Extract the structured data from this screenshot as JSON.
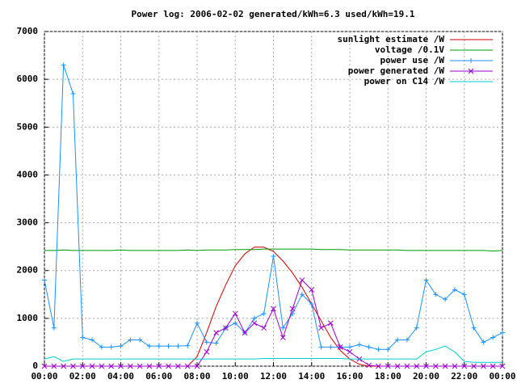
{
  "chart_data": {
    "type": "line",
    "title": "Power log: 2006-02-02 generated/kWh=6.3 used/kWh=19.1",
    "x": [
      0,
      0.5,
      1,
      1.5,
      2,
      2.5,
      3,
      3.5,
      4,
      4.5,
      5,
      5.5,
      6,
      6.5,
      7,
      7.5,
      8,
      8.5,
      9,
      9.5,
      10,
      10.5,
      11,
      11.5,
      12,
      12.5,
      13,
      13.5,
      14,
      14.5,
      15,
      15.5,
      16,
      16.5,
      17,
      17.5,
      18,
      18.5,
      19,
      19.5,
      20,
      20.5,
      21,
      21.5,
      22,
      22.5,
      23,
      23.5,
      24
    ],
    "xlim": [
      0,
      24
    ],
    "xticks": [
      {
        "value": 0,
        "label": "00:00"
      },
      {
        "value": 2,
        "label": "02:00"
      },
      {
        "value": 4,
        "label": "04:00"
      },
      {
        "value": 6,
        "label": "06:00"
      },
      {
        "value": 8,
        "label": "08:00"
      },
      {
        "value": 10,
        "label": "10:00"
      },
      {
        "value": 12,
        "label": "12:00"
      },
      {
        "value": 14,
        "label": "14:00"
      },
      {
        "value": 16,
        "label": "16:00"
      },
      {
        "value": 18,
        "label": "18:00"
      },
      {
        "value": 20,
        "label": "20:00"
      },
      {
        "value": 22,
        "label": "22:00"
      },
      {
        "value": 24,
        "label": "00:00"
      }
    ],
    "ylim": [
      0,
      7000
    ],
    "yticks": [
      0,
      1000,
      2000,
      3000,
      4000,
      5000,
      6000,
      7000
    ],
    "grid": true,
    "legend": "top-right",
    "series": [
      {
        "name": "sunlight estimate /W",
        "color": "#cc0000",
        "marker": "none",
        "values": [
          0,
          0,
          0,
          0,
          0,
          0,
          0,
          0,
          0,
          0,
          0,
          0,
          0,
          0,
          0,
          0,
          200,
          700,
          1250,
          1700,
          2100,
          2350,
          2490,
          2490,
          2400,
          2200,
          1950,
          1650,
          1300,
          950,
          600,
          330,
          150,
          40,
          0,
          0,
          0,
          0,
          0,
          0,
          0,
          0,
          0,
          0,
          0,
          0,
          0,
          0,
          0
        ]
      },
      {
        "name": "voltage /0.1V",
        "color": "#009900",
        "marker": "none",
        "values": [
          2420,
          2420,
          2430,
          2420,
          2420,
          2420,
          2420,
          2420,
          2430,
          2420,
          2420,
          2420,
          2420,
          2420,
          2420,
          2430,
          2420,
          2430,
          2430,
          2430,
          2440,
          2440,
          2440,
          2450,
          2450,
          2450,
          2450,
          2450,
          2450,
          2440,
          2440,
          2440,
          2430,
          2430,
          2430,
          2430,
          2430,
          2430,
          2420,
          2420,
          2420,
          2420,
          2420,
          2420,
          2420,
          2420,
          2420,
          2410,
          2420
        ]
      },
      {
        "name": "power use /W",
        "color": "#1e90ff",
        "marker": "plus",
        "values": [
          1800,
          800,
          6300,
          5700,
          600,
          550,
          400,
          400,
          420,
          550,
          550,
          420,
          420,
          420,
          420,
          430,
          900,
          500,
          480,
          800,
          900,
          700,
          1000,
          1100,
          2300,
          800,
          1100,
          1500,
          1300,
          400,
          400,
          400,
          400,
          450,
          400,
          350,
          350,
          550,
          550,
          800,
          1800,
          1500,
          1400,
          1600,
          1500,
          800,
          500,
          600,
          700
        ]
      },
      {
        "name": "power generated /W",
        "color": "#9900cc",
        "marker": "cross",
        "values": [
          0,
          0,
          0,
          0,
          0,
          0,
          0,
          0,
          0,
          0,
          0,
          0,
          0,
          0,
          0,
          0,
          0,
          300,
          700,
          800,
          1100,
          700,
          900,
          800,
          1200,
          600,
          1200,
          1800,
          1600,
          800,
          900,
          400,
          300,
          150,
          20,
          0,
          0,
          0,
          0,
          0,
          0,
          0,
          0,
          0,
          0,
          0,
          0,
          0,
          0
        ]
      },
      {
        "name": "power on C14 /W",
        "color": "#00cccc",
        "marker": "none",
        "values": [
          150,
          200,
          100,
          150,
          150,
          150,
          150,
          150,
          150,
          150,
          150,
          150,
          150,
          150,
          150,
          150,
          150,
          150,
          150,
          150,
          150,
          150,
          150,
          160,
          160,
          160,
          160,
          160,
          160,
          160,
          160,
          160,
          150,
          150,
          150,
          150,
          150,
          150,
          150,
          150,
          300,
          350,
          420,
          300,
          100,
          80,
          80,
          80,
          80
        ]
      }
    ]
  }
}
